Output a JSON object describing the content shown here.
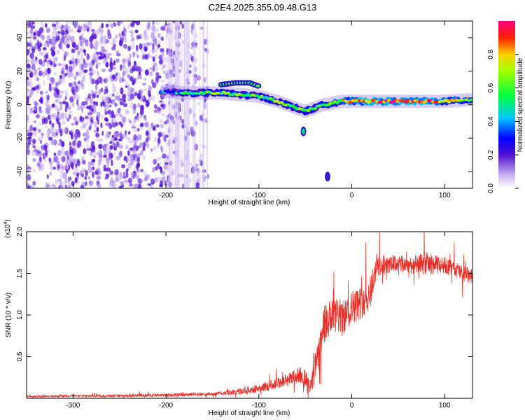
{
  "title": "C2E4.2025.355.09.48.G13",
  "chart_data": [
    {
      "type": "heatmap",
      "xlabel": "Height of straight line (km)",
      "ylabel": "Frequency (Hz)",
      "xlim": [
        -350,
        130
      ],
      "ylim": [
        -50,
        50
      ],
      "xticks": [
        -300,
        -200,
        -100,
        0,
        100
      ],
      "yticks": [
        -40,
        -20,
        0,
        20,
        40
      ],
      "colorbar": {
        "label": "Normalized spectral amplitude",
        "ticks": [
          "0.0",
          "0.2",
          "0.4",
          "0.6",
          "0.8"
        ],
        "tick_values": [
          0.0,
          0.2,
          0.4,
          0.6,
          0.8
        ],
        "range": [
          0,
          1
        ]
      },
      "noise_region_x": [
        -350,
        -155
      ],
      "ridge": {
        "x": [
          -200,
          -180,
          -160,
          -140,
          -120,
          -100,
          -80,
          -60,
          -50,
          -40,
          -30,
          -20,
          -10,
          0,
          20,
          40,
          60,
          80,
          100,
          130
        ],
        "freq": [
          8,
          7,
          7,
          7,
          6,
          5,
          2,
          -2,
          -4,
          -2,
          0,
          1,
          2,
          2,
          2,
          2,
          2,
          2,
          2,
          3
        ],
        "amplitude": [
          0.3,
          0.5,
          0.55,
          0.6,
          0.6,
          0.55,
          0.6,
          0.65,
          0.55,
          0.6,
          0.6,
          0.65,
          0.7,
          0.8,
          0.9,
          0.9,
          0.85,
          0.9,
          0.8,
          0.6
        ]
      },
      "upper_branch": {
        "x": [
          -140,
          -125,
          -110,
          -100
        ],
        "freq": [
          12,
          13,
          13,
          11
        ]
      },
      "isolated_blobs": [
        {
          "x": -52,
          "freq": -16,
          "amplitude": 0.5
        },
        {
          "x": -26,
          "freq": -43,
          "amplitude": 0.2
        }
      ]
    },
    {
      "type": "line",
      "xlabel": "Height of straight line (km)",
      "ylabel": "SNR (10 * v/v)",
      "y_multiplier": "(x10",
      "y_multiplier_exp": "4",
      "y_multiplier_close": ")",
      "xlim": [
        -350,
        130
      ],
      "ylim": [
        0,
        2.0
      ],
      "xticks": [
        -300,
        -200,
        -100,
        0,
        100
      ],
      "yticks": [
        "0.5",
        "1.0",
        "1.5",
        "2.0"
      ],
      "ytick_values": [
        0.5,
        1.0,
        1.5,
        2.0
      ],
      "series": [
        {
          "name": "SNR",
          "color": "#e8302a",
          "x": [
            -350,
            -300,
            -250,
            -200,
            -150,
            -120,
            -100,
            -80,
            -70,
            -60,
            -55,
            -50,
            -45,
            -40,
            -35,
            -30,
            -25,
            -20,
            -15,
            -10,
            -5,
            0,
            5,
            10,
            15,
            20,
            25,
            30,
            35,
            40,
            50,
            60,
            70,
            80,
            90,
            100,
            110,
            120,
            130
          ],
          "y": [
            0.02,
            0.03,
            0.03,
            0.04,
            0.05,
            0.08,
            0.12,
            0.18,
            0.22,
            0.26,
            0.28,
            0.25,
            0.12,
            0.35,
            0.55,
            0.85,
            0.95,
            0.95,
            1.0,
            0.95,
            1.02,
            1.1,
            1.12,
            1.15,
            1.2,
            1.25,
            1.55,
            1.6,
            1.58,
            1.6,
            1.62,
            1.6,
            1.6,
            1.62,
            1.6,
            1.6,
            1.55,
            1.5,
            1.45
          ],
          "noise_amplitude": [
            0.01,
            0.01,
            0.015,
            0.02,
            0.02,
            0.04,
            0.05,
            0.07,
            0.08,
            0.1,
            0.1,
            0.1,
            0.08,
            0.15,
            0.2,
            0.25,
            0.25,
            0.22,
            0.22,
            0.22,
            0.2,
            0.2,
            0.2,
            0.2,
            0.2,
            0.2,
            0.2,
            0.15,
            0.12,
            0.1,
            0.1,
            0.1,
            0.12,
            0.14,
            0.12,
            0.1,
            0.1,
            0.1,
            0.1
          ]
        }
      ]
    }
  ]
}
